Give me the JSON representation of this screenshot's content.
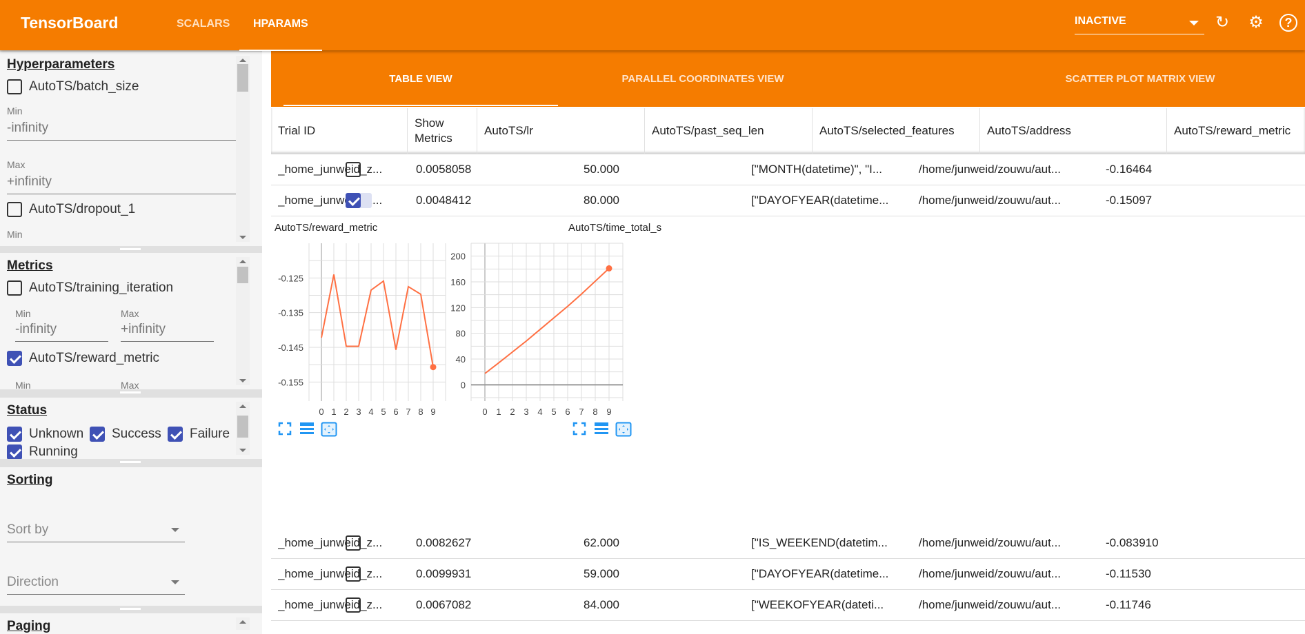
{
  "header": {
    "title": "TensorBoard",
    "tabs": [
      "SCALARS",
      "HPARAMS"
    ],
    "active_tab": "HPARAMS",
    "run_selector": "INACTIVE",
    "icons": [
      "refresh-icon",
      "settings-icon",
      "help-icon"
    ]
  },
  "sidebar": {
    "hyperparameters": {
      "title": "Hyperparameters",
      "items": [
        {
          "label": "AutoTS/batch_size",
          "checked": false,
          "min_label": "Min",
          "min": "-infinity",
          "max_label": "Max",
          "max": "+infinity"
        },
        {
          "label": "AutoTS/dropout_1",
          "checked": false,
          "min_label": "Min"
        }
      ]
    },
    "metrics": {
      "title": "Metrics",
      "items": [
        {
          "label": "AutoTS/training_iteration",
          "checked": false,
          "min_label": "Min",
          "min": "-infinity",
          "max_label": "Max",
          "max": "+infinity"
        },
        {
          "label": "AutoTS/reward_metric",
          "checked": true,
          "min_label": "Min",
          "max_label": "Max"
        }
      ]
    },
    "status": {
      "title": "Status",
      "items": [
        {
          "label": "Unknown",
          "checked": true
        },
        {
          "label": "Success",
          "checked": true
        },
        {
          "label": "Failure",
          "checked": true
        },
        {
          "label": "Running",
          "checked": true
        }
      ]
    },
    "sorting": {
      "title": "Sorting",
      "sort_by": "Sort by",
      "direction": "Direction"
    },
    "paging": {
      "title": "Paging"
    }
  },
  "views": {
    "tabs": [
      "TABLE VIEW",
      "PARALLEL COORDINATES VIEW",
      "SCATTER PLOT MATRIX VIEW"
    ],
    "active": "TABLE VIEW"
  },
  "table": {
    "columns": [
      "Trial ID",
      "Show Metrics",
      "AutoTS/lr",
      "AutoTS/past_seq_len",
      "AutoTS/selected_features",
      "AutoTS/address",
      "AutoTS/reward_metric"
    ],
    "rows": [
      [
        "_home_junweid_z...",
        false,
        "0.0058058",
        "50.000",
        "[\"MONTH(datetime)\", \"I...",
        "/home/junweid/zouwu/aut...",
        "-0.16464"
      ],
      [
        "_home_junweid_z...",
        true,
        "0.0048412",
        "80.000",
        "[\"DAYOFYEAR(datetime...",
        "/home/junweid/zouwu/aut...",
        "-0.15097"
      ],
      [
        "_home_junweid_z...",
        false,
        "0.0082627",
        "62.000",
        "[\"IS_WEEKEND(datetim...",
        "/home/junweid/zouwu/aut...",
        "-0.083910"
      ],
      [
        "_home_junweid_z...",
        false,
        "0.0099931",
        "59.000",
        "[\"DAYOFYEAR(datetime...",
        "/home/junweid/zouwu/aut...",
        "-0.11530"
      ],
      [
        "_home_junweid_z...",
        false,
        "0.0067082",
        "84.000",
        "[\"WEEKOFYEAR(dateti...",
        "/home/junweid/zouwu/aut...",
        "-0.11746"
      ]
    ]
  },
  "chart_data": [
    {
      "type": "line",
      "title": "AutoTS/reward_metric",
      "x": [
        0,
        1,
        2,
        3,
        4,
        5,
        6,
        7,
        8,
        9
      ],
      "values": [
        -0.1422,
        -0.124,
        -0.1447,
        -0.1447,
        -0.1285,
        -0.1259,
        -0.1457,
        -0.1275,
        -0.1297,
        -0.1507
      ],
      "ylim": [
        -0.1595,
        -0.115
      ],
      "yticks": [
        -0.125,
        -0.135,
        -0.145,
        -0.155
      ],
      "xlim": [
        -1,
        10
      ],
      "xticks": [
        0,
        1,
        2,
        3,
        4,
        5,
        6,
        7,
        8,
        9
      ],
      "grid": true,
      "color": "#ff7043"
    },
    {
      "type": "line",
      "title": "AutoTS/time_total_s",
      "x": [
        0,
        1,
        2,
        3,
        4,
        5,
        6,
        7,
        8,
        9
      ],
      "values": [
        17.5,
        34,
        51,
        68,
        86,
        104,
        122,
        141,
        161,
        181
      ],
      "ylim": [
        -20,
        220
      ],
      "yticks": [
        0,
        40,
        80,
        120,
        160,
        200
      ],
      "xlim": [
        -1,
        10
      ],
      "xticks": [
        0,
        1,
        2,
        3,
        4,
        5,
        6,
        7,
        8,
        9
      ],
      "grid": true,
      "color": "#ff7043"
    }
  ],
  "chart_controls": [
    "fullscreen-icon",
    "toggle-log-scale-icon",
    "fit-domain-icon"
  ]
}
